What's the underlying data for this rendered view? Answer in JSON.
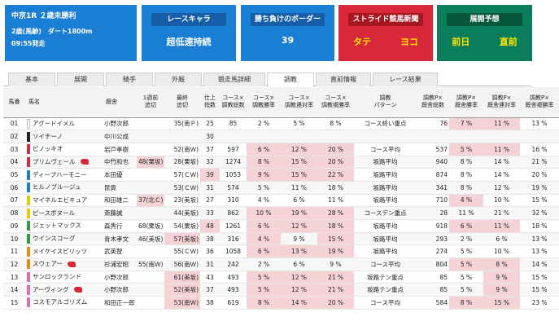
{
  "race": {
    "title": "中京1R ２歳未勝利",
    "cond": "2歳(馬齢)　ダート1800m",
    "time": "09:55発走"
  },
  "cards": [
    {
      "label": "レースキャラ",
      "value": "超低速持続"
    },
    {
      "label": "勝ち負けのボーダー",
      "value": "39"
    },
    {
      "label": "ストライド競馬新聞",
      "left": "タテ",
      "right": "ヨコ"
    },
    {
      "label": "展開予想",
      "left": "前日",
      "right": "直前"
    }
  ],
  "tabs": [
    "基本",
    "展開",
    "騎手",
    "外厩",
    "競走馬詳細",
    "調教",
    "直前情報",
    "レース結果"
  ],
  "active_tab": "調教",
  "columns": [
    "馬番",
    "馬名",
    "厩舎",
    "1週前\n追切",
    "最終\n追切",
    "仕上\n指数",
    "コース×\n調教総数",
    "コース×\n調教勝率",
    "コース×\n調教連対率",
    "コース×\n調教複勝率",
    "調教\nパターン",
    "調教P×\n厩舎総数",
    "調教P×\n厩舎勝率",
    "調教P×\n厩舎連対率",
    "調教P×\n厩舎複勝率"
  ],
  "colors": {
    "blue": "#1a7ed4",
    "red": "#d9283b",
    "green": "#0a7e5b",
    "pink": "#f5d2d5"
  },
  "rows": [
    {
      "no": "01",
      "wk": "#ffffff",
      "name": "アグードイメル",
      "flag": false,
      "trainer": "小野次郎",
      "w1": "",
      "fin": "35(南Ｐ)",
      "idx": "25",
      "n": "85",
      "w": "2 %",
      "p": "5 %",
      "s": "8 %",
      "pat": "コース終い重点",
      "pn": "76",
      "pw": "7 %",
      "pp": "11 %",
      "ps": "13 %",
      "pk": [
        "pw",
        "pp"
      ]
    },
    {
      "no": "02",
      "wk": "#222222",
      "name": "ソイチーノ",
      "flag": false,
      "trainer": "中川公成",
      "w1": "",
      "fin": "",
      "idx": "30",
      "n": "",
      "w": "",
      "p": "",
      "s": "",
      "pat": "",
      "pn": "",
      "pw": "",
      "pp": "",
      "ps": "",
      "pk": []
    },
    {
      "no": "03",
      "wk": "#d9283b",
      "name": "ピノッキオ",
      "flag": false,
      "trainer": "岩戸孝樹",
      "w1": "",
      "fin": "52(南Ｗ)",
      "idx": "37",
      "n": "597",
      "w": "6 %",
      "p": "12 %",
      "s": "20 %",
      "pat": "コース平均",
      "pn": "537",
      "pw": "5 %",
      "pp": "11 %",
      "ps": "16 %",
      "pk": [
        "w",
        "p",
        "s",
        "pw",
        "pp"
      ]
    },
    {
      "no": "04",
      "wk": "#d9283b",
      "name": "プリムヴェール",
      "flag": true,
      "trainer": "中竹和也",
      "w1": "48(栗坂)",
      "fin": "28(栗坂)",
      "idx": "32",
      "n": "1274",
      "w": "8 %",
      "p": "15 %",
      "s": "20 %",
      "pat": "坂路平均",
      "pn": "940",
      "pw": "8 %",
      "pp": "14 %",
      "ps": "21 %",
      "pk": [
        "w1",
        "w",
        "p",
        "s"
      ]
    },
    {
      "no": "05",
      "wk": "#1a7ed4",
      "name": "ディープハーモニー",
      "flag": false,
      "trainer": "本田優",
      "w1": "",
      "fin": "57(ＣＷ)",
      "idx": "39",
      "n": "1053",
      "w": "9 %",
      "p": "15 %",
      "s": "22 %",
      "pat": "坂路平均",
      "pn": "874",
      "pw": "8 %",
      "pp": "14 %",
      "ps": "20 %",
      "pk": [
        "idx",
        "w",
        "p",
        "s"
      ]
    },
    {
      "no": "06",
      "wk": "#1a7ed4",
      "name": "ヒルノブルージュ",
      "flag": false,
      "trainer": "昆貢",
      "w1": "",
      "fin": "53(ＣＷ)",
      "idx": "31",
      "n": "574",
      "w": "5 %",
      "p": "11 %",
      "s": "18 %",
      "pat": "坂路平均",
      "pn": "341",
      "pw": "8 %",
      "pp": "12 %",
      "ps": "19 %",
      "pk": []
    },
    {
      "no": "07",
      "wk": "#e8c800",
      "name": "マイネルエビキュア",
      "flag": false,
      "trainer": "和田雄二",
      "w1": "37(北Ｃ)",
      "fin": "23(美坂)",
      "idx": "27",
      "n": "310",
      "w": "4 %",
      "p": "6 %",
      "s": "11 %",
      "pat": "坂路平均",
      "pn": "710",
      "pw": "4 %",
      "pp": "10 %",
      "ps": "15 %",
      "pk": [
        "w1",
        "pw"
      ]
    },
    {
      "no": "08",
      "wk": "#e8c800",
      "name": "ピースボヌール",
      "flag": false,
      "trainer": "斎藤誠",
      "w1": "",
      "fin": "44(美坂)",
      "idx": "33",
      "n": "862",
      "w": "10 %",
      "p": "19 %",
      "s": "28 %",
      "pat": "コースデン重点",
      "pn": "28",
      "pw": "11 %",
      "pp": "21 %",
      "ps": "32 %",
      "pk": [
        "w",
        "p",
        "s"
      ]
    },
    {
      "no": "09",
      "wk": "#2e9e3f",
      "name": "ジェットマックス",
      "flag": false,
      "trainer": "森秀行",
      "w1": "68(栗坂)",
      "fin": "54(栗坂)",
      "idx": "48",
      "n": "1261",
      "w": "6 %",
      "p": "12 %",
      "s": "18 %",
      "pat": "坂路平均",
      "pn": "918",
      "pw": "6 %",
      "pp": "11 %",
      "ps": "18 %",
      "pk": [
        "idx",
        "w",
        "p",
        "s",
        "pw",
        "pp"
      ]
    },
    {
      "no": "10",
      "wk": "#2e9e3f",
      "name": "ウインスコーグ",
      "flag": false,
      "trainer": "青木孝文",
      "w1": "46(美坂)",
      "fin": "57(美坂)",
      "idx": "38",
      "n": "316",
      "w": "4 %",
      "p": "9 %",
      "s": "15 %",
      "pat": "坂路平均",
      "pn": "293",
      "pw": "2 %",
      "pp": "6 %",
      "ps": "13 %",
      "pk": [
        "fin",
        "w",
        "s"
      ]
    },
    {
      "no": "11",
      "wk": "#f08a1c",
      "name": "メイケイスピリッツ",
      "flag": false,
      "trainer": "武英智",
      "w1": "",
      "fin": "55(ＣＷ)",
      "idx": "36",
      "n": "1058",
      "w": "6 %",
      "p": "13 %",
      "s": "19 %",
      "pat": "坂路平均",
      "pn": "274",
      "pw": "5 %",
      "pp": "10 %",
      "ps": "13 %",
      "pk": [
        "w",
        "p",
        "s"
      ]
    },
    {
      "no": "12",
      "wk": "#f08a1c",
      "name": "スウェアー",
      "flag": true,
      "trainer": "杉浦宏昭",
      "w1": "55(南Ｗ)",
      "fin": "56(南Ｗ)",
      "idx": "31",
      "n": "242",
      "w": "2 %",
      "p": "6 %",
      "s": "9 %",
      "pat": "コース平均",
      "pn": "804",
      "pw": "5 %",
      "pp": "8 %",
      "ps": "14 %",
      "pk": [
        "pw",
        "pp"
      ]
    },
    {
      "no": "13",
      "wk": "#e86aa8",
      "name": "サンロックランド",
      "flag": false,
      "trainer": "小野次郎",
      "w1": "",
      "fin": "61(美坂)",
      "idx": "43",
      "n": "493",
      "w": "5 %",
      "p": "12 %",
      "s": "21 %",
      "pat": "坂路テン重点",
      "pn": "85",
      "pw": "5 %",
      "pp": "9 %",
      "ps": "15 %",
      "pk": [
        "fin",
        "w",
        "p",
        "s",
        "pp"
      ]
    },
    {
      "no": "14",
      "wk": "#e86aa8",
      "name": "アーヴィング",
      "flag": true,
      "trainer": "小野次郎",
      "w1": "",
      "fin": "52(美坂)",
      "idx": "37",
      "n": "493",
      "w": "5 %",
      "p": "12 %",
      "s": "21 %",
      "pat": "坂路テン重点",
      "pn": "85",
      "pw": "5 %",
      "pp": "9 %",
      "ps": "15 %",
      "pk": [
        "fin",
        "w",
        "p",
        "s",
        "pp"
      ]
    },
    {
      "no": "15",
      "wk": "#e86aa8",
      "name": "コスモアルゴリズム",
      "flag": false,
      "trainer": "和田正一郎",
      "w1": "",
      "fin": "53(南Ｗ)",
      "idx": "38",
      "n": "619",
      "w": "8 %",
      "p": "14 %",
      "s": "20 %",
      "pat": "コース平均",
      "pn": "584",
      "pw": "8 %",
      "pp": "15 %",
      "ps": "23 %",
      "pk": [
        "fin",
        "w",
        "p",
        "s",
        "pw",
        "pp"
      ]
    }
  ]
}
